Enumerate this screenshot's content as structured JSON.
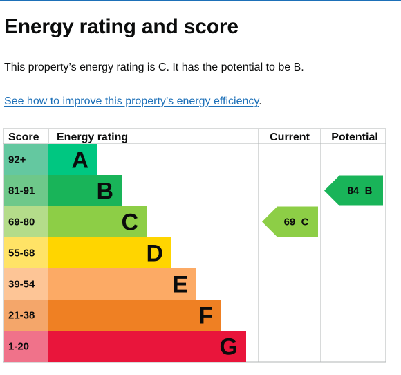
{
  "heading": "Energy rating and score",
  "summary": "This property’s energy rating is C. It has the potential to be B.",
  "improve_link": "See how to improve this property’s energy efficiency",
  "improve_link_suffix": ".",
  "table": {
    "headers": {
      "score": "Score",
      "rating": "Energy rating",
      "current": "Current",
      "potential": "Potential"
    },
    "bands": [
      {
        "score": "92+",
        "letter": "A",
        "color": "#00c781",
        "score_color": "#64c8a0"
      },
      {
        "score": "81-91",
        "letter": "B",
        "color": "#19b459",
        "score_color": "#6ec88a"
      },
      {
        "score": "69-80",
        "letter": "C",
        "color": "#8dce46",
        "score_color": "#b4dc8a"
      },
      {
        "score": "55-68",
        "letter": "D",
        "color": "#ffd500",
        "score_color": "#ffe366"
      },
      {
        "score": "39-54",
        "letter": "E",
        "color": "#fcaa65",
        "score_color": "#fdc596"
      },
      {
        "score": "21-38",
        "letter": "F",
        "color": "#ef8023",
        "score_color": "#f4a66a"
      },
      {
        "score": "1-20",
        "letter": "G",
        "color": "#e9153b",
        "score_color": "#f0728a"
      }
    ],
    "current": {
      "value": "69",
      "letter": "C",
      "band_index": 2,
      "color": "#8dce46",
      "text_color": "#0b0c0c"
    },
    "potential": {
      "value": "84",
      "letter": "B",
      "band_index": 1,
      "color": "#19b459",
      "text_color": "#0b0c0c"
    }
  }
}
